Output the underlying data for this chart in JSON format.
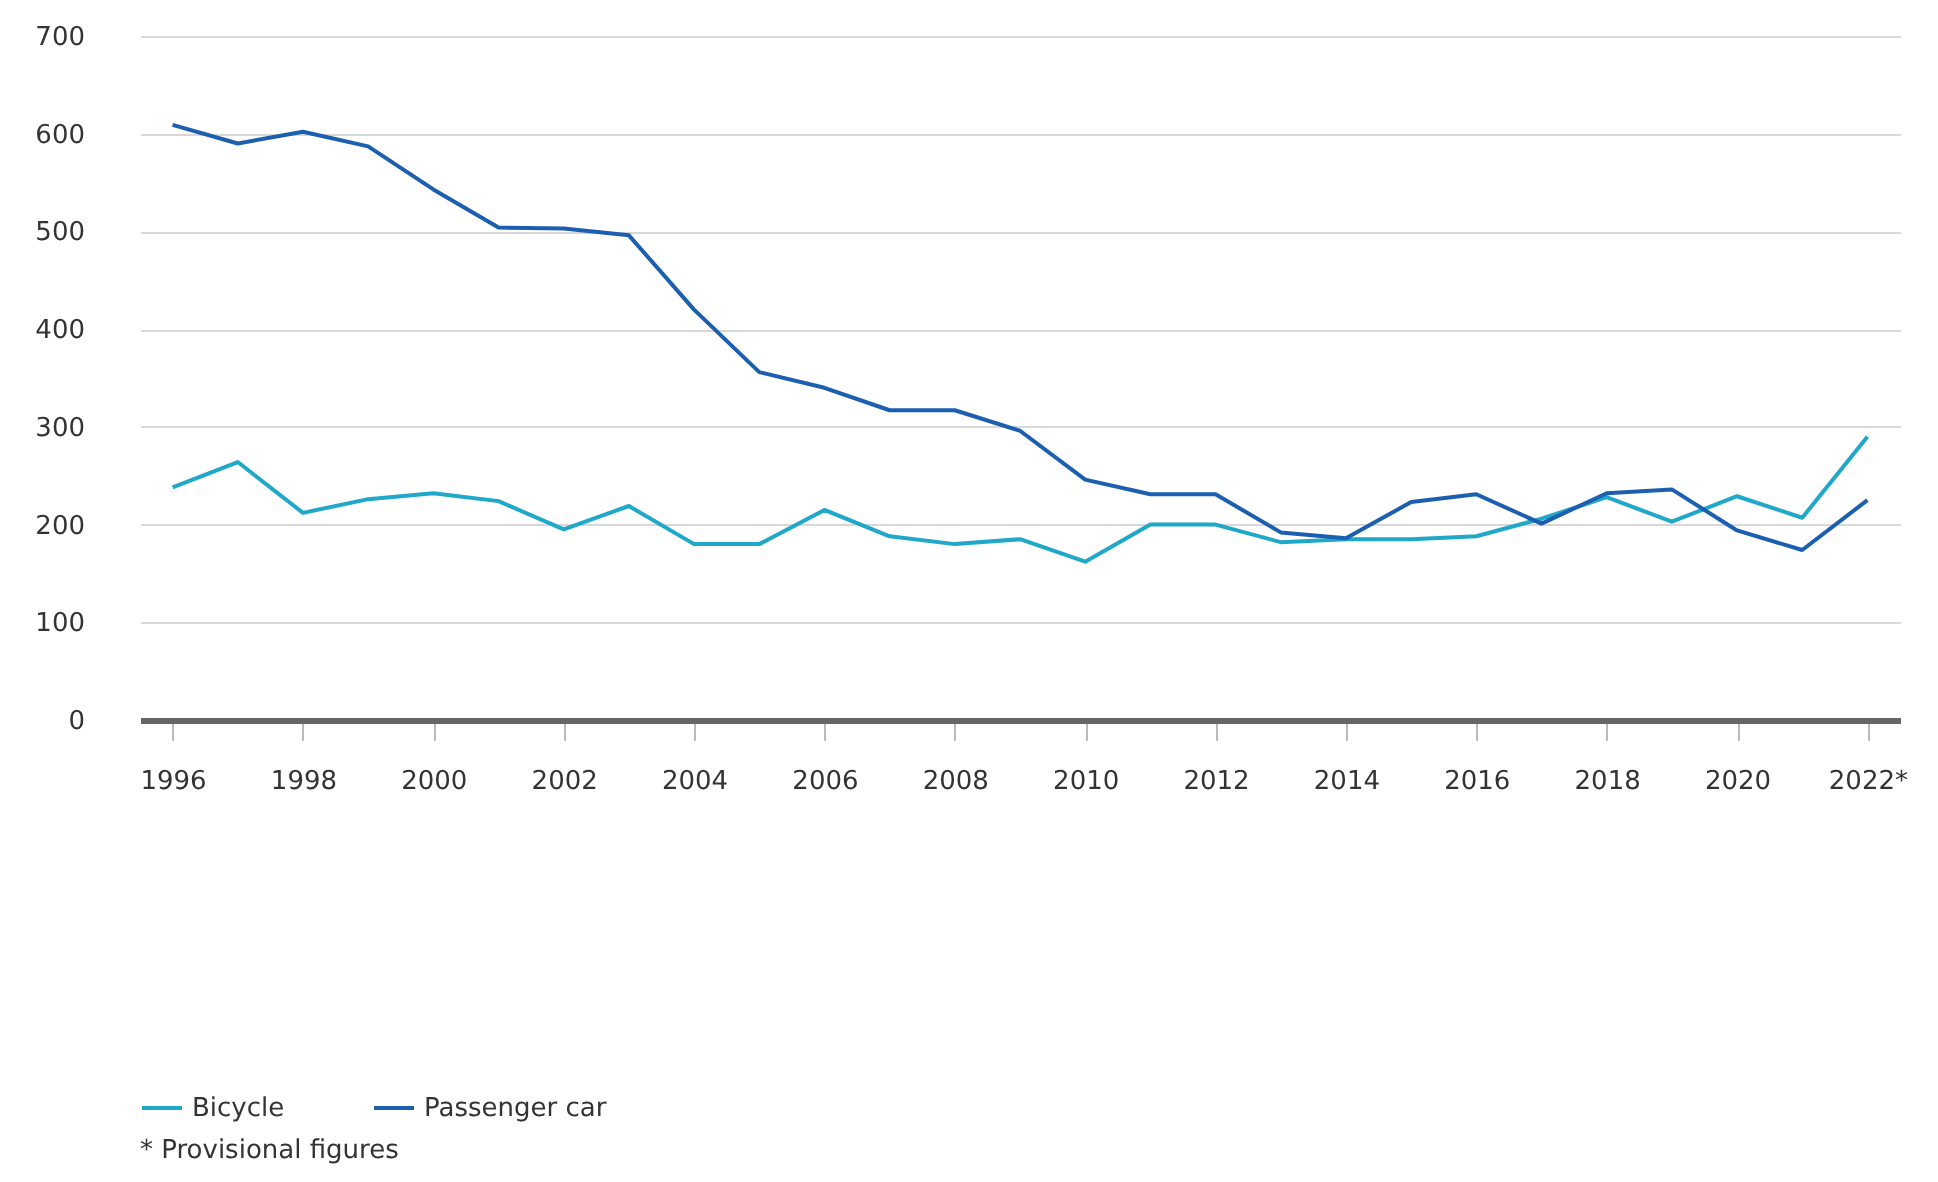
{
  "chart_data": {
    "type": "line",
    "x": [
      1996,
      1997,
      1998,
      1999,
      2000,
      2001,
      2002,
      2003,
      2004,
      2005,
      2006,
      2007,
      2008,
      2009,
      2010,
      2011,
      2012,
      2013,
      2014,
      2015,
      2016,
      2017,
      2018,
      2019,
      2020,
      2021,
      2022
    ],
    "series": [
      {
        "name": "Bicycle",
        "color": "#1fa8c9",
        "values": [
          238,
          264,
          212,
          226,
          232,
          224,
          195,
          219,
          180,
          180,
          215,
          188,
          180,
          185,
          162,
          200,
          200,
          182,
          185,
          185,
          188,
          206,
          228,
          203,
          229,
          207,
          290
        ]
      },
      {
        "name": "Passenger car",
        "color": "#1c5fb0",
        "values": [
          609,
          590,
          602,
          587,
          543,
          504,
          503,
          496,
          420,
          356,
          340,
          317,
          317,
          296,
          246,
          231,
          231,
          192,
          186,
          223,
          231,
          201,
          232,
          236,
          194,
          174,
          225
        ]
      }
    ],
    "xlim": [
      1995.5,
      2022.5
    ],
    "xticks": [
      1996,
      1998,
      2000,
      2002,
      2004,
      2006,
      2008,
      2010,
      2012,
      2014,
      2016,
      2018,
      2020,
      {
        "value": 2022,
        "label": "2022*"
      }
    ],
    "ylim": [
      0,
      700
    ],
    "yticks": [
      0,
      100,
      200,
      300,
      400,
      500,
      600,
      700
    ],
    "grid": "y",
    "legend": "bottom left",
    "line_style": "solid",
    "marker": "none",
    "annotations": [
      "* Provisional figures"
    ]
  }
}
